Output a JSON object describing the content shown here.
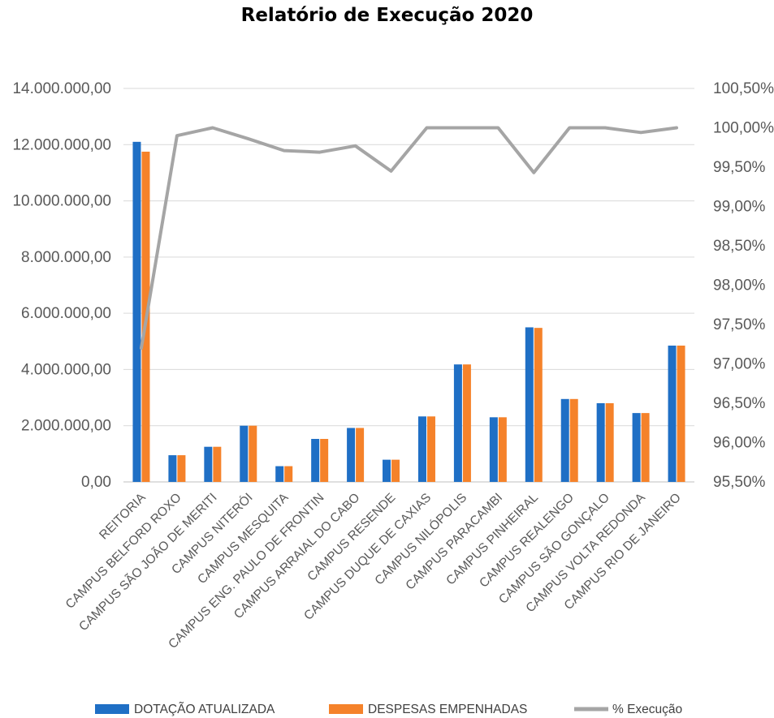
{
  "chart_data": {
    "type": "bar",
    "title": "Relatório de Execução 2020",
    "categories": [
      "REITORIA",
      "CAMPUS BELFORD ROXO",
      "CAMPUS SÃO JOÃO DE MERITI",
      "CAMPUS NITERÓI",
      "CAMPUS MESQUITA",
      "CAMPUS ENG. PAULO DE FRONTIN",
      "CAMPUS ARRAIAL DO CABO",
      "CAMPUS RESENDE",
      "CAMPUS DUQUE DE CAXIAS",
      "CAMPUS NILÓPOLIS",
      "CAMPUS PARACAMBI",
      "CAMPUS PINHEIRAL",
      "CAMPUS REALENGO",
      "CAMPUS SÃO GONÇALO",
      "CAMPUS VOLTA REDONDA",
      "CAMPUS RIO DE JANEIRO"
    ],
    "series": [
      {
        "name": "DOTAÇÃO ATUALIZADA",
        "type": "bar",
        "axis": "left",
        "color": "#1f6fc5",
        "values": [
          12100000,
          950000,
          1250000,
          2000000,
          560000,
          1530000,
          1920000,
          790000,
          2330000,
          4180000,
          2300000,
          5500000,
          2950000,
          2800000,
          2450000,
          4850000
        ]
      },
      {
        "name": "DESPESAS EMPENHADAS",
        "type": "bar",
        "axis": "left",
        "color": "#f5822a",
        "values": [
          11750000,
          950000,
          1250000,
          2000000,
          560000,
          1530000,
          1920000,
          790000,
          2330000,
          4180000,
          2300000,
          5480000,
          2950000,
          2800000,
          2450000,
          4850000
        ]
      },
      {
        "name": "% Execução",
        "type": "line",
        "axis": "right",
        "color": "#a5a5a5",
        "values": [
          97.2,
          99.9,
          100.0,
          99.86,
          99.71,
          99.69,
          99.77,
          99.45,
          100.0,
          100.0,
          100.0,
          99.43,
          100.0,
          100.0,
          99.94,
          100.0
        ]
      }
    ],
    "y_left": {
      "min": 0,
      "max": 14000000,
      "ticks": [
        "0,00",
        "2.000.000,00",
        "4.000.000,00",
        "6.000.000,00",
        "8.000.000,00",
        "10.000.000,00",
        "12.000.000,00",
        "14.000.000,00"
      ]
    },
    "y_right": {
      "min": 95.5,
      "max": 100.5,
      "ticks": [
        "95,50%",
        "96,00%",
        "96,50%",
        "97,00%",
        "97,50%",
        "98,00%",
        "98,50%",
        "99,00%",
        "99,50%",
        "100,00%",
        "100,50%"
      ]
    },
    "grid": true,
    "legend": "bottom"
  }
}
